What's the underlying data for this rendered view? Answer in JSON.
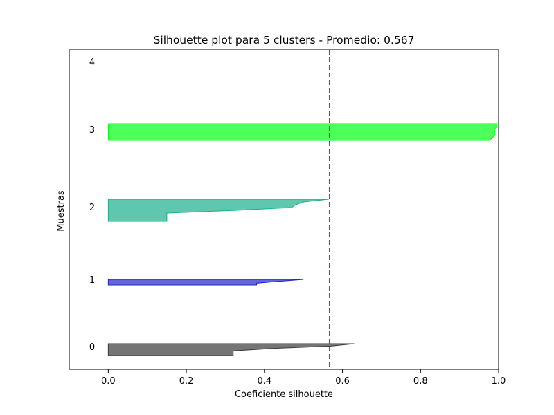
{
  "chart_data": {
    "type": "area",
    "title": "Silhouette plot para 5 clusters - Promedio: 0.567",
    "xlabel": "Coeficiente silhouette",
    "ylabel": "Muestras",
    "xlim": [
      -0.1,
      1.0
    ],
    "x_ticks": [
      "0.0",
      "0.2",
      "0.4",
      "0.6",
      "0.8",
      "1.0"
    ],
    "y_ticks": [],
    "grid": false,
    "average_silhouette": 0.567,
    "average_line_color": "#d62728",
    "clusters": [
      {
        "label": "0",
        "color": "#3a3a3a",
        "silhouette_values": [
          0.63,
          0.57,
          0.42,
          0.32,
          0.32,
          0.32
        ]
      },
      {
        "label": "1",
        "color": "#2222cc",
        "silhouette_values": [
          0.5,
          0.44,
          0.38,
          0.38
        ]
      },
      {
        "label": "2",
        "color": "#1aaf8c",
        "silhouette_values": [
          0.565,
          0.5,
          0.48,
          0.47,
          0.33,
          0.15,
          0.15,
          0.15,
          0.15
        ]
      },
      {
        "label": "3",
        "color": "#00ff14",
        "silhouette_values": [
          0.995,
          0.995,
          0.99,
          0.99,
          0.99,
          0.985,
          0.975
        ]
      },
      {
        "label": "4",
        "color": "#ffffff",
        "silhouette_values": []
      }
    ]
  }
}
